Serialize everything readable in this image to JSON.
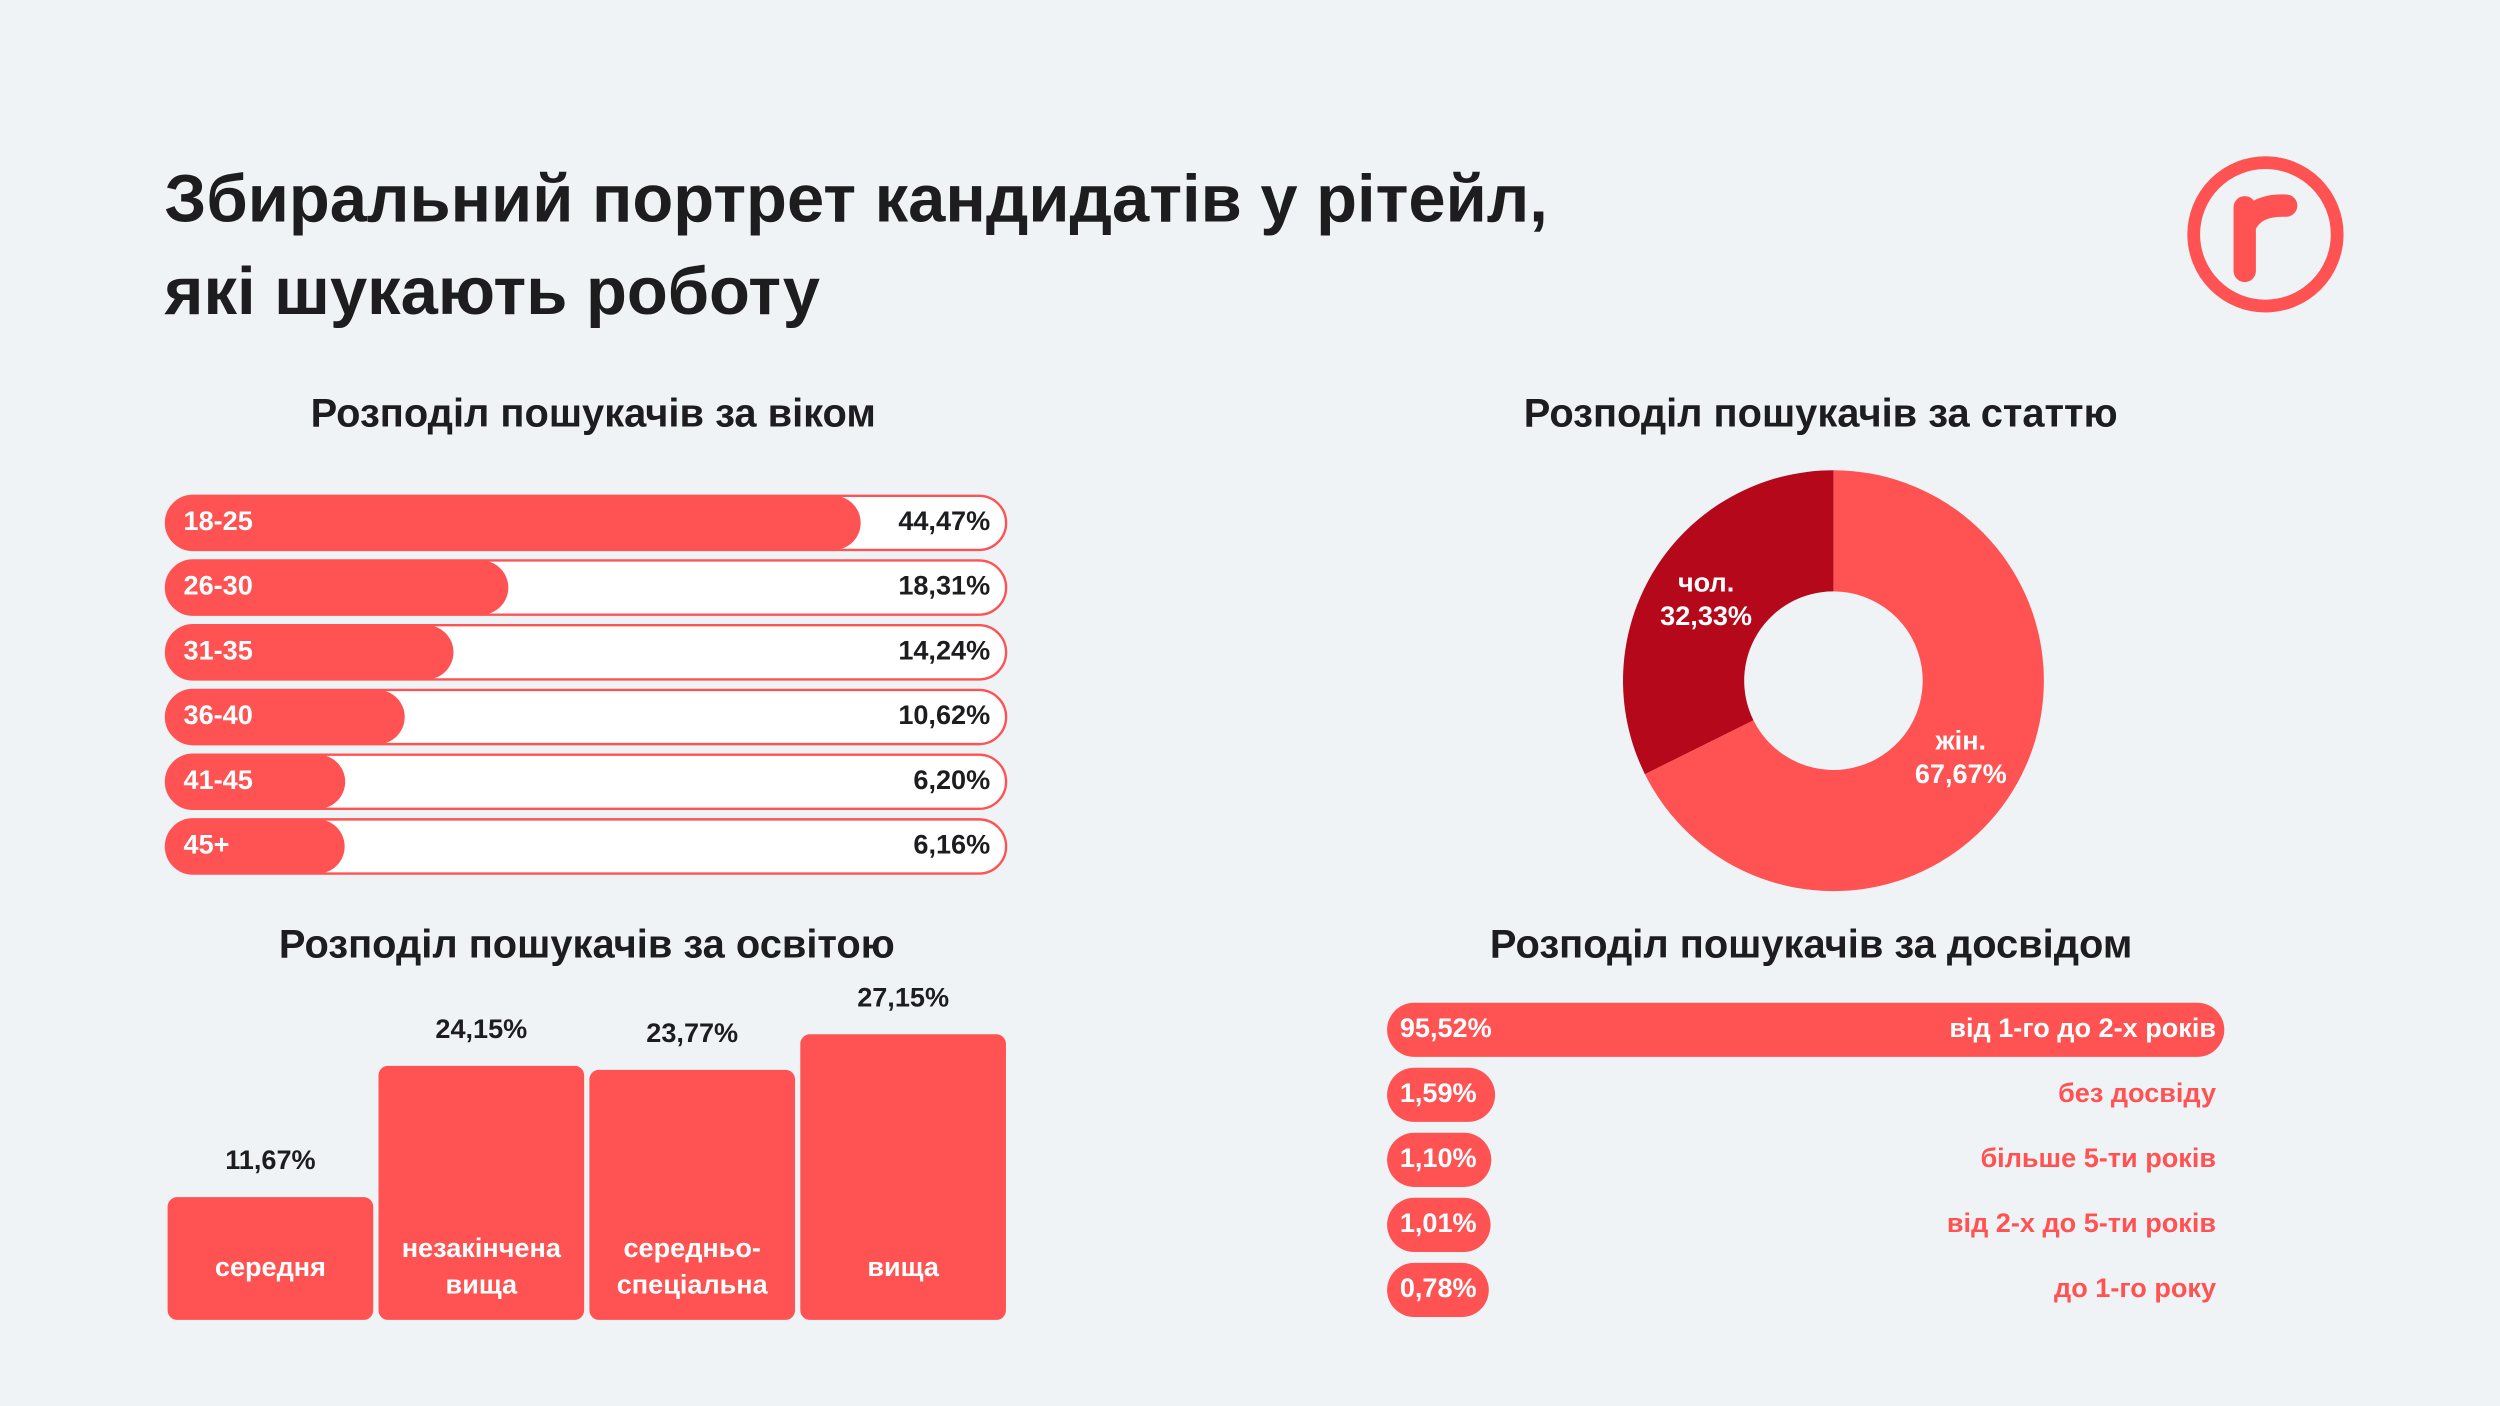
{
  "title": [
    "Збиральний портрет кандидатів у рітейл,",
    "які шукають роботу"
  ],
  "chart_data": [
    {
      "type": "bar",
      "orientation": "horizontal",
      "title": "Розподіл пошукачів за віком",
      "categories": [
        "18-25",
        "26-30",
        "31-35",
        "36-40",
        "41-45",
        "45+"
      ],
      "values": [
        44.47,
        18.31,
        14.24,
        10.62,
        6.2,
        6.16
      ],
      "value_labels": [
        "44,47%",
        "18,31%",
        "14,24%",
        "10,62%",
        "6,20%",
        "6,16%"
      ],
      "color": "#ff5252"
    },
    {
      "type": "donut",
      "title": "Розподіл пошукачів за статтю",
      "categories": [
        "чол.",
        "жін."
      ],
      "values": [
        32.33,
        67.67
      ],
      "value_labels": [
        "32,33%",
        "67,67%"
      ],
      "colors": [
        "#b5081b",
        "#ff5252"
      ]
    },
    {
      "type": "bar",
      "orientation": "vertical",
      "title": "Розподіл пошукачів за освітою",
      "categories": [
        "середня",
        "незакінчена вища",
        "середньо-спеціальна",
        "вища"
      ],
      "values": [
        11.67,
        24.15,
        23.77,
        27.15
      ],
      "value_labels": [
        "11,67%",
        "24,15%",
        "23,77%",
        "27,15%"
      ],
      "color": "#ff5252"
    },
    {
      "type": "bar",
      "orientation": "horizontal",
      "title": "Розподіл пошукачів за досвідом",
      "categories": [
        "від 1-го до 2-х років",
        "без досвіду",
        "більше 5-ти років",
        "від 2-х до 5-ти років",
        "до 1-го року"
      ],
      "values": [
        95.52,
        1.59,
        1.1,
        1.01,
        0.78
      ],
      "value_labels": [
        "95,52%",
        "1,59%",
        "1,10%",
        "1,01%",
        "0,78%"
      ],
      "color": "#ff5252"
    }
  ]
}
